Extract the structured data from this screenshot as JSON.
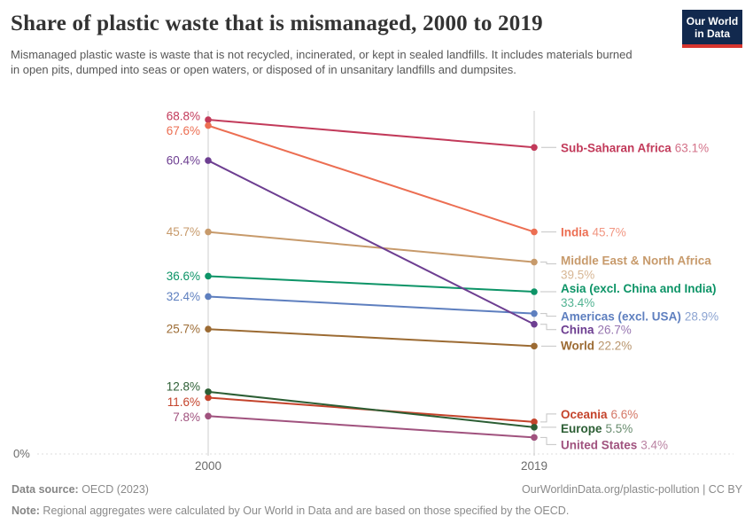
{
  "header": {
    "title": "Share of plastic waste that is mismanaged, 2000 to 2019",
    "subtitle": "Mismanaged plastic waste is waste that is not recycled, incinerated, or kept in sealed landfills. It includes materials burned in open pits, dumped into seas or open waters, or disposed of in unsanitary landfills and dumpsites.",
    "logo": {
      "line1": "Our World",
      "line2": "in Data",
      "bg_color": "#12294e",
      "stripe_color": "#d7352e"
    }
  },
  "chart_data": {
    "type": "line",
    "variant": "slope",
    "title": "Share of plastic waste that is mismanaged, 2000 to 2019",
    "x": [
      2000,
      2019
    ],
    "x_tick_labels": [
      "2000",
      "2019"
    ],
    "value_suffix": "%",
    "ylim": [
      0,
      70
    ],
    "y_zero_label": "0%",
    "grid": "zero-line-only",
    "legend_position": "right-inline",
    "series": [
      {
        "name": "Sub-Saharan Africa",
        "values": [
          68.8,
          63.1
        ],
        "color": "#c23a5a"
      },
      {
        "name": "India",
        "values": [
          67.6,
          45.7
        ],
        "color": "#ec6e52"
      },
      {
        "name": "Middle East & North Africa",
        "values": [
          45.7,
          39.5
        ],
        "color": "#c79a6b"
      },
      {
        "name": "Asia (excl. China and India)",
        "values": [
          36.6,
          33.4
        ],
        "color": "#0d9467"
      },
      {
        "name": "Americas (excl. USA)",
        "values": [
          32.4,
          28.9
        ],
        "color": "#5e7fbf"
      },
      {
        "name": "China",
        "values": [
          60.4,
          26.7
        ],
        "color": "#6d3e91"
      },
      {
        "name": "World",
        "values": [
          25.7,
          22.2
        ],
        "color": "#9c6b33"
      },
      {
        "name": "Oceania",
        "values": [
          11.6,
          6.6
        ],
        "color": "#c4432b"
      },
      {
        "name": "Europe",
        "values": [
          12.8,
          5.5
        ],
        "color": "#2c5e34"
      },
      {
        "name": "United States",
        "values": [
          7.8,
          3.4
        ],
        "color": "#a0527e"
      }
    ],
    "colors": {
      "axis": "#cdcdcd",
      "zero_gridline": "#dcdcdc",
      "tick_text": "#6b6b6b",
      "connector": "#c4c4c4"
    }
  },
  "footer": {
    "datasource_label": "Data source:",
    "datasource_value": " OECD (2023)",
    "url_text": "OurWorldinData.org/plastic-pollution | CC BY",
    "note_label": "Note:",
    "note_value": " Regional aggregates were calculated by Our World in Data and are based on those specified by the OECD."
  }
}
